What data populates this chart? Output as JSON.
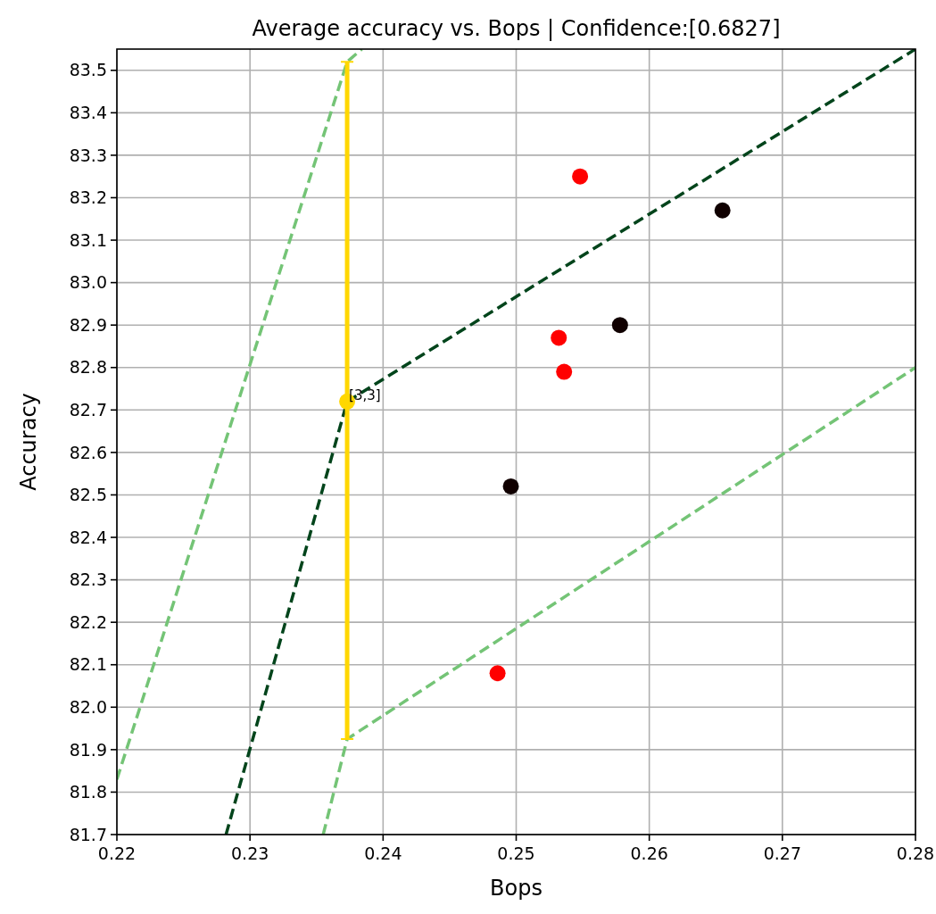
{
  "chart_data": {
    "type": "scatter",
    "title": "Average accuracy vs. Bops | Confidence:[0.6827]",
    "xlabel": "Bops",
    "ylabel": "Accuracy",
    "xlim": [
      0.22,
      0.28
    ],
    "xticks": [
      0.22,
      0.23,
      0.24,
      0.25,
      0.26,
      0.27,
      0.28
    ],
    "ylim": [
      81.7,
      83.55
    ],
    "yticks": [
      81.7,
      81.8,
      81.9,
      {
        "value": 82,
        "label": "82.0"
      },
      82.1,
      82.2,
      82.3,
      82.4,
      82.5,
      82.6,
      82.7,
      82.8,
      82.9,
      {
        "value": 83,
        "label": "83.0"
      },
      83.1,
      83.2,
      83.3,
      83.4,
      83.5
    ],
    "grid": true,
    "marker": "circle",
    "series": [
      {
        "type": "line",
        "marker": "none",
        "color": "#00441b",
        "line_style": "dashed",
        "x": [
          0.2282,
          0.2373,
          0.28
        ],
        "values": [
          81.7,
          82.72,
          83.55
        ]
      },
      {
        "type": "line",
        "marker": "none",
        "color": "#74c476",
        "line_style": "dashed",
        "x": [
          0.22,
          0.2373,
          0.2384
        ],
        "values": [
          81.83,
          83.52,
          83.55
        ]
      },
      {
        "type": "line",
        "marker": "none",
        "color": "#74c476",
        "line_style": "dashed",
        "x": [
          0.2355,
          0.2373,
          0.28
        ],
        "values": [
          81.7,
          81.925,
          82.8
        ]
      },
      {
        "color": "#ff0000",
        "x": [
          0.2548,
          0.2532,
          0.2536,
          0.2486
        ],
        "values": [
          83.25,
          82.87,
          82.79,
          82.08
        ]
      },
      {
        "color": "#100000",
        "x": [
          0.2655,
          0.2578,
          0.2496
        ],
        "values": [
          83.17,
          82.9,
          82.52
        ]
      },
      {
        "color": "#ffd700",
        "x": [
          0.2373
        ],
        "values": [
          82.72
        ],
        "errors": [
          [
            81.925,
            83.52
          ]
        ]
      }
    ],
    "annotations": [
      {
        "text": "[3,3]",
        "x": 0.2373,
        "y": 82.72
      }
    ]
  }
}
